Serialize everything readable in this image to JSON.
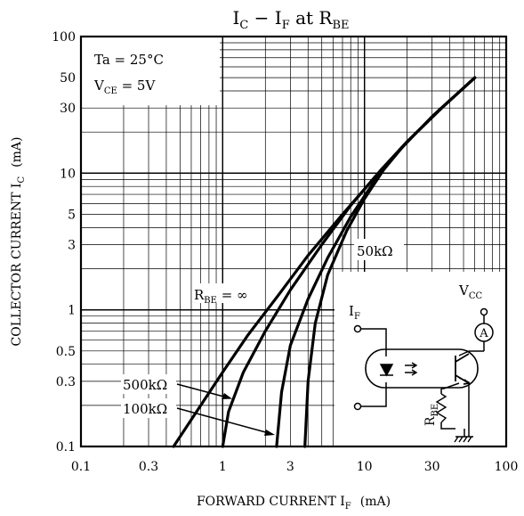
{
  "chart_data": {
    "type": "line",
    "title": {
      "main": "I",
      "sub1": "C",
      "mid": " − I",
      "sub2": "F",
      "tail": " at R",
      "sub3": "BE"
    },
    "xlabel": {
      "text": "FORWARD CURRENT  I",
      "sub": "F",
      "unit": "(mA)"
    },
    "ylabel": {
      "text": "COLLECTOR CURRENT  I",
      "sub": "C",
      "unit": "(mA)"
    },
    "x_scale": "log",
    "y_scale": "log",
    "xlim": [
      0.1,
      100
    ],
    "ylim": [
      0.1,
      100
    ],
    "grid": true,
    "x_ticks": [
      {
        "value": 0.1,
        "label": "0.1"
      },
      {
        "value": 0.3,
        "label": "0.3"
      },
      {
        "value": 1,
        "label": "1"
      },
      {
        "value": 3,
        "label": "3"
      },
      {
        "value": 10,
        "label": "10"
      },
      {
        "value": 30,
        "label": "30"
      },
      {
        "value": 100,
        "label": "100"
      }
    ],
    "y_ticks": [
      {
        "value": 0.1,
        "label": "0.1"
      },
      {
        "value": 0.3,
        "label": "0.3"
      },
      {
        "value": 0.5,
        "label": "0.5"
      },
      {
        "value": 1,
        "label": "1"
      },
      {
        "value": 3,
        "label": "3"
      },
      {
        "value": 5,
        "label": "5"
      },
      {
        "value": 10,
        "label": "10"
      },
      {
        "value": 30,
        "label": "30"
      },
      {
        "value": 50,
        "label": "50"
      },
      {
        "value": 100,
        "label": "100"
      }
    ],
    "conditions": [
      {
        "main": "Ta = 25°C",
        "sub": ""
      },
      {
        "main": "V",
        "sub": "CE",
        "tail": " = 5V"
      }
    ],
    "series": [
      {
        "name": "R_BE = ∞",
        "x": [
          0.45,
          0.7,
          1.0,
          1.5,
          2.5,
          4.0,
          7.0,
          12.0,
          20.0,
          35.0,
          60.0
        ],
        "y": [
          0.1,
          0.2,
          0.35,
          0.65,
          1.3,
          2.5,
          5.0,
          9.5,
          17.0,
          30.0,
          50.0
        ]
      },
      {
        "name": "500kΩ",
        "x": [
          1.0,
          1.1,
          1.4,
          2.0,
          3.0,
          5.0,
          8.0,
          13.0,
          20.0,
          35.0,
          60.0
        ],
        "y": [
          0.1,
          0.18,
          0.35,
          0.7,
          1.4,
          3.0,
          5.8,
          10.5,
          17.0,
          30.0,
          50.0
        ]
      },
      {
        "name": "100kΩ",
        "x": [
          2.4,
          2.6,
          3.0,
          4.0,
          5.5,
          8.0,
          12.0,
          18.0,
          30.0,
          60.0
        ],
        "y": [
          0.1,
          0.25,
          0.55,
          1.2,
          2.4,
          4.8,
          9.0,
          15.0,
          26.0,
          50.0
        ]
      },
      {
        "name": "50kΩ",
        "x": [
          3.8,
          4.0,
          4.5,
          5.5,
          7.5,
          10.0,
          14.0,
          20.0,
          35.0,
          60.0
        ],
        "y": [
          0.1,
          0.3,
          0.8,
          1.8,
          3.8,
          6.5,
          11.0,
          17.0,
          30.0,
          50.0
        ]
      }
    ],
    "annotations": {
      "rbe_inf": {
        "main": "R",
        "sub": "BE",
        "tail": " = ∞"
      },
      "k500": "500kΩ",
      "k100": "100kΩ",
      "k50": "50kΩ"
    },
    "circuit": {
      "if_label": {
        "main": "I",
        "sub": "F"
      },
      "vcc_label": {
        "main": "V",
        "sub": "CC"
      },
      "rbe_label": {
        "main": "R",
        "sub": "BE"
      },
      "ammeter": "A"
    }
  }
}
